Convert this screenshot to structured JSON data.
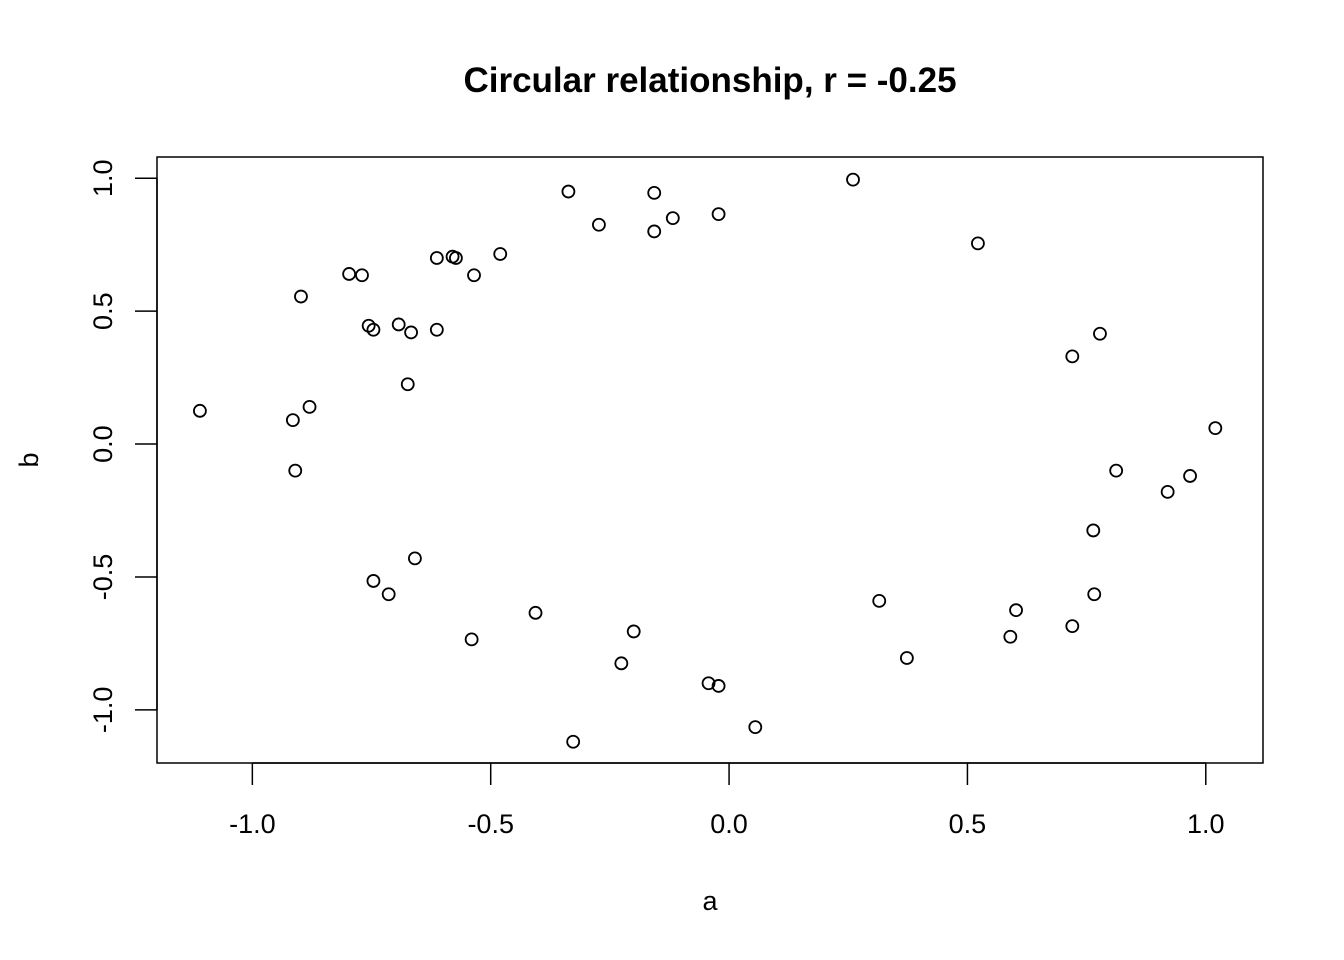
{
  "chart_data": {
    "type": "scatter",
    "title": "Circular relationship, r = -0.25",
    "xlabel": "a",
    "ylabel": "b",
    "xlim": [
      -1.2,
      1.12
    ],
    "ylim": [
      -1.2,
      1.08
    ],
    "x_ticks": [
      {
        "value": -1.0,
        "label": "-1.0"
      },
      {
        "value": -0.5,
        "label": "-0.5"
      },
      {
        "value": 0.0,
        "label": "0.0"
      },
      {
        "value": 0.5,
        "label": "0.5"
      },
      {
        "value": 1.0,
        "label": "1.0"
      }
    ],
    "y_ticks": [
      {
        "value": -1.0,
        "label": "-1.0"
      },
      {
        "value": -0.5,
        "label": "-0.5"
      },
      {
        "value": 0.0,
        "label": "0.0"
      },
      {
        "value": 0.5,
        "label": "0.5"
      },
      {
        "value": 1.0,
        "label": "1.0"
      }
    ],
    "grid": false,
    "marker": "open-circle",
    "points": [
      {
        "x": -1.11,
        "y": 0.125
      },
      {
        "x": -0.915,
        "y": 0.09
      },
      {
        "x": -0.91,
        "y": -0.1
      },
      {
        "x": -0.88,
        "y": 0.14
      },
      {
        "x": -0.898,
        "y": 0.555
      },
      {
        "x": -0.797,
        "y": 0.64
      },
      {
        "x": -0.77,
        "y": 0.635
      },
      {
        "x": -0.756,
        "y": 0.445
      },
      {
        "x": -0.746,
        "y": 0.43
      },
      {
        "x": -0.693,
        "y": 0.45
      },
      {
        "x": -0.667,
        "y": 0.42
      },
      {
        "x": -0.674,
        "y": 0.225
      },
      {
        "x": -0.613,
        "y": 0.7
      },
      {
        "x": -0.613,
        "y": 0.43
      },
      {
        "x": -0.58,
        "y": 0.705
      },
      {
        "x": -0.573,
        "y": 0.7
      },
      {
        "x": -0.535,
        "y": 0.635
      },
      {
        "x": -0.48,
        "y": 0.715
      },
      {
        "x": -0.337,
        "y": 0.95
      },
      {
        "x": -0.273,
        "y": 0.825
      },
      {
        "x": -0.157,
        "y": 0.945
      },
      {
        "x": -0.157,
        "y": 0.8
      },
      {
        "x": -0.118,
        "y": 0.85
      },
      {
        "x": -0.022,
        "y": 0.865
      },
      {
        "x": 0.26,
        "y": 0.995
      },
      {
        "x": 0.522,
        "y": 0.755
      },
      {
        "x": 0.72,
        "y": 0.33
      },
      {
        "x": 0.778,
        "y": 0.415
      },
      {
        "x": 1.02,
        "y": 0.06
      },
      {
        "x": 0.812,
        "y": -0.1
      },
      {
        "x": 0.967,
        "y": -0.12
      },
      {
        "x": 0.92,
        "y": -0.18
      },
      {
        "x": 0.764,
        "y": -0.325
      },
      {
        "x": 0.766,
        "y": -0.565
      },
      {
        "x": 0.602,
        "y": -0.625
      },
      {
        "x": 0.72,
        "y": -0.685
      },
      {
        "x": 0.59,
        "y": -0.725
      },
      {
        "x": 0.315,
        "y": -0.59
      },
      {
        "x": 0.373,
        "y": -0.805
      },
      {
        "x": 0.055,
        "y": -1.065
      },
      {
        "x": -0.043,
        "y": -0.9
      },
      {
        "x": -0.022,
        "y": -0.91
      },
      {
        "x": -0.2,
        "y": -0.705
      },
      {
        "x": -0.226,
        "y": -0.825
      },
      {
        "x": -0.406,
        "y": -0.635
      },
      {
        "x": -0.54,
        "y": -0.735
      },
      {
        "x": -0.327,
        "y": -1.12
      },
      {
        "x": -0.659,
        "y": -0.43
      },
      {
        "x": -0.746,
        "y": -0.515
      },
      {
        "x": -0.714,
        "y": -0.565
      }
    ]
  }
}
